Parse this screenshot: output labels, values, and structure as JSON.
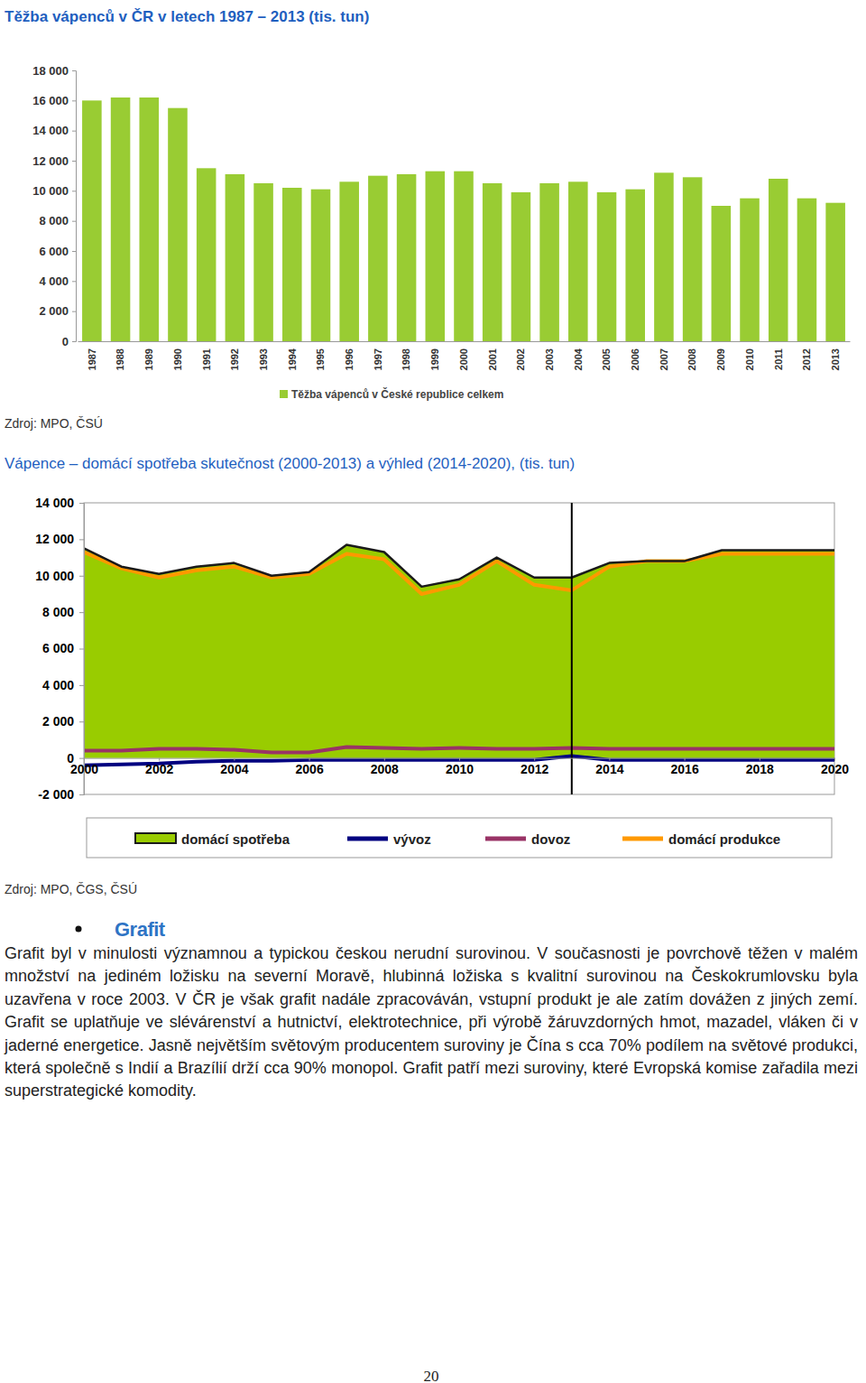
{
  "chart_data": [
    {
      "type": "bar",
      "title": "Těžba vápenců v ČR v letech 1987 – 2013 (tis. tun)",
      "categories": [
        "1987",
        "1988",
        "1989",
        "1990",
        "1991",
        "1992",
        "1993",
        "1994",
        "1995",
        "1996",
        "1997",
        "1998",
        "1999",
        "2000",
        "2001",
        "2002",
        "2003",
        "2004",
        "2005",
        "2006",
        "2007",
        "2008",
        "2009",
        "2010",
        "2011",
        "2012",
        "2013"
      ],
      "series": [
        {
          "name": "Těžba vápenců v České republice celkem",
          "color": "#99cc33",
          "values": [
            16000,
            16200,
            16200,
            15500,
            11500,
            11100,
            10500,
            10200,
            10100,
            10600,
            11000,
            11100,
            11300,
            11300,
            10500,
            9900,
            10500,
            10600,
            9900,
            10100,
            11200,
            10900,
            9000,
            9500,
            10800,
            9500,
            9200
          ]
        }
      ],
      "ylim": [
        0,
        18000
      ],
      "yticks": [
        0,
        {
          "value": 2000,
          "label": "2 000"
        },
        {
          "value": 4000,
          "label": "4 000"
        },
        {
          "value": 6000,
          "label": "6 000"
        },
        {
          "value": 8000,
          "label": "8 000"
        },
        {
          "value": 10000,
          "label": "10 000"
        },
        {
          "value": 12000,
          "label": "12 000"
        },
        {
          "value": 14000,
          "label": "14 000"
        },
        {
          "value": 16000,
          "label": "16 000"
        },
        {
          "value": 18000,
          "label": "18 000"
        }
      ],
      "grid": false,
      "legend": "bottom"
    },
    {
      "type": "line",
      "title": "Vápence – domácí spotřeba skutečnost (2000-2013) a výhled (2014-2020), (tis. tun)",
      "x": [
        2000,
        2001,
        2002,
        2003,
        2004,
        2005,
        2006,
        2007,
        2008,
        2009,
        2010,
        2011,
        2012,
        2013,
        2014,
        2015,
        2016,
        2017,
        2018,
        2019,
        2020
      ],
      "series": [
        {
          "name": "domácí spotřeba",
          "type": "area",
          "color": "#99cc00",
          "values": [
            11500,
            10500,
            10100,
            10500,
            10700,
            10000,
            10200,
            11700,
            11300,
            9400,
            9800,
            11000,
            9900,
            9900,
            10700,
            10800,
            10800,
            11400,
            11400,
            11400,
            11400
          ]
        },
        {
          "name": "vývoz",
          "type": "line",
          "color": "#000080",
          "values": [
            -400,
            -350,
            -300,
            -200,
            -150,
            -150,
            -100,
            -100,
            -100,
            -100,
            -100,
            -100,
            -100,
            100,
            -100,
            -100,
            -100,
            -100,
            -100,
            -100,
            -100
          ]
        },
        {
          "name": "dovoz",
          "type": "line",
          "color": "#993366",
          "values": [
            400,
            400,
            500,
            500,
            450,
            300,
            300,
            600,
            550,
            500,
            550,
            500,
            500,
            550,
            500,
            500,
            500,
            500,
            500,
            500,
            500
          ]
        },
        {
          "name": "domácí produkce",
          "type": "line",
          "color": "#ff9900",
          "values": [
            11300,
            10400,
            9900,
            10300,
            10500,
            9900,
            10100,
            11200,
            10900,
            9000,
            9500,
            10800,
            9500,
            9200,
            10500,
            10800,
            10800,
            11200,
            11200,
            11200,
            11200
          ]
        }
      ],
      "xlim": [
        2000,
        2020
      ],
      "xticks": [
        2000,
        2002,
        2004,
        2006,
        2008,
        2010,
        2012,
        2014,
        2016,
        2018,
        2020
      ],
      "ylim": [
        -2000,
        14000
      ],
      "yticks": [
        {
          "value": -2000,
          "label": "-2 000"
        },
        0,
        {
          "value": 2000,
          "label": "2 000"
        },
        {
          "value": 4000,
          "label": "4 000"
        },
        {
          "value": 6000,
          "label": "6 000"
        },
        {
          "value": 8000,
          "label": "8 000"
        },
        {
          "value": 10000,
          "label": "10 000"
        },
        {
          "value": 12000,
          "label": "12 000"
        },
        {
          "value": 14000,
          "label": "14 000"
        }
      ],
      "divider_x": 2013,
      "grid": false,
      "legend": "bottom"
    }
  ],
  "document": {
    "sources": [
      "Zdroj: MPO, ČSÚ",
      "Zdroj: MPO, ČGS, ČSÚ"
    ],
    "section_title": "Grafit",
    "paragraph": "Grafit byl v minulosti významnou a typickou českou nerudní surovinou. V současnosti je povrchově těžen v malém množství na jediném ložisku na severní Moravě, hlubinná ložiska s kvalitní surovinou na Českokrumlovsku byla uzavřena v roce 2003. V ČR je však grafit nadále zpracováván, vstupní produkt je ale zatím dovážen z jiných zemí. Grafit se uplatňuje ve slévárenství a hutnictví, elektrotechnice, při výrobě žáruvzdorných hmot, mazadel, vláken či v jaderné energetice. Jasně největším světovým producentem suroviny je Čína s cca 70% podílem na světové produkci, která společně s Indií a Brazílií drží cca 90% monopol. Grafit patří mezi suroviny, které Evropská komise zařadila mezi superstrategické komodity.",
    "page_number": 20
  }
}
